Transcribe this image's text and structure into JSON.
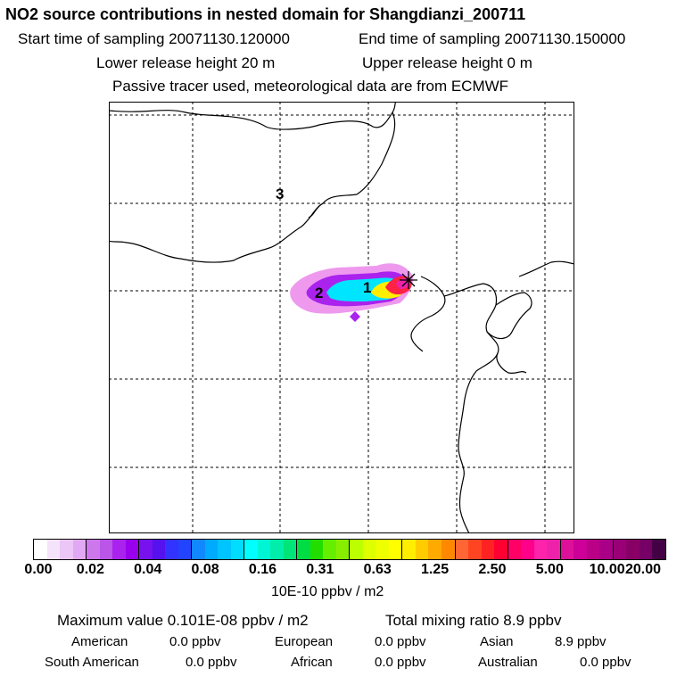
{
  "header": {
    "title": "NO2 source contributions in nested domain for Shangdianzi_200711",
    "start_time": "Start time of sampling 20071130.120000",
    "end_time": "End time of sampling 20071130.150000",
    "lower_height": "Lower release height   20 m",
    "upper_height": "Upper release height    0 m",
    "tracer_note": "Passive tracer used, meteorological data are from ECMWF"
  },
  "map": {
    "labels": [
      "1",
      "2",
      "3"
    ],
    "station_marker": "star-icon"
  },
  "colorbar": {
    "ticks": [
      "0.00",
      "0.02",
      "0.04",
      "0.08",
      "0.16",
      "0.31",
      "0.63",
      "1.25",
      "2.50",
      "5.00",
      "10.00",
      "20.00"
    ],
    "colors": [
      "#ffffff",
      "#f5e3fb",
      "#ecc6f7",
      "#e1a8f3",
      "#cc77ec",
      "#bb55e8",
      "#aa22ee",
      "#9900ee",
      "#7711ee",
      "#5511ee",
      "#3333ff",
      "#2244ff",
      "#1188ff",
      "#00aaff",
      "#00c4ff",
      "#00ddff",
      "#00ffff",
      "#00f5d5",
      "#00eeaa",
      "#00e577",
      "#00dd44",
      "#22dd00",
      "#66ee00",
      "#88ee00",
      "#bbff00",
      "#ddff00",
      "#eeff00",
      "#ffff00",
      "#ffee00",
      "#ffcc00",
      "#ffaa00",
      "#ff8800",
      "#ff6633",
      "#ff4422",
      "#ff2222",
      "#ff0033",
      "#ff0066",
      "#ff0088",
      "#ff22aa",
      "#ee22aa",
      "#dd1199",
      "#cc0099",
      "#bb0088",
      "#aa0088",
      "#990077",
      "#880066",
      "#770066",
      "#440044"
    ],
    "unit": "10E-10 ppbv / m2"
  },
  "stats": {
    "max_value": "Maximum value  0.101E-08 ppbv / m2",
    "total_mixing": "Total mixing ratio       8.9 ppbv",
    "regions": [
      {
        "name": "American",
        "value": "0.0 ppbv"
      },
      {
        "name": "European",
        "value": "0.0 ppbv"
      },
      {
        "name": "Asian",
        "value": "8.9 ppbv"
      },
      {
        "name": "South American",
        "value": "0.0 ppbv"
      },
      {
        "name": "African",
        "value": "0.0 ppbv"
      },
      {
        "name": "Australian",
        "value": "0.0 ppbv"
      }
    ]
  }
}
